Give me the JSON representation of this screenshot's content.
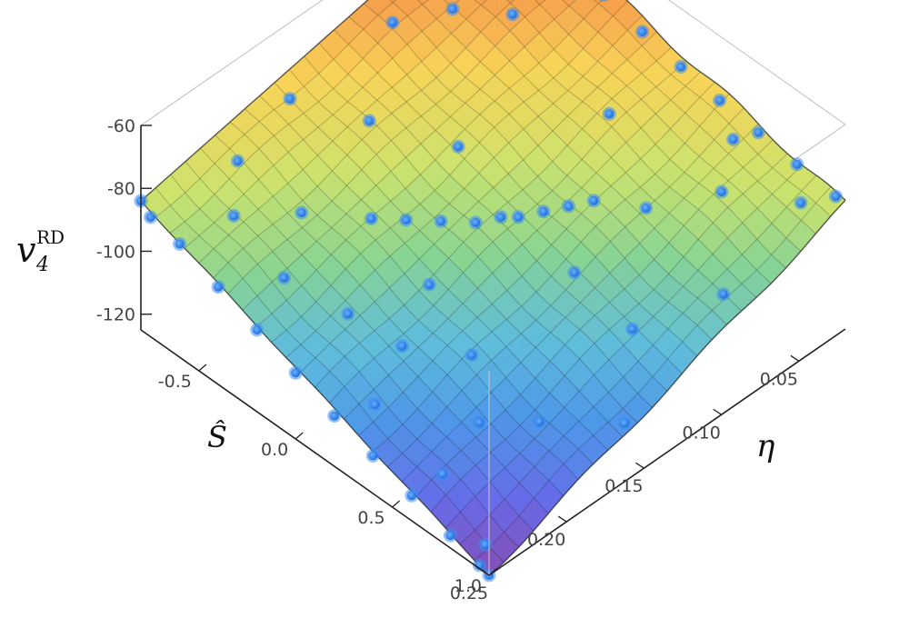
{
  "chart_data": {
    "type": "surface",
    "title": "",
    "axes": {
      "x": {
        "label": "Ŝ",
        "ticks": [
          "-0.5",
          "0.0",
          "0.5",
          "1.0"
        ],
        "range": [
          -0.8,
          1.0
        ]
      },
      "y": {
        "label": "η",
        "ticks": [
          "0.05",
          "0.10",
          "0.15",
          "0.20",
          "0.25"
        ],
        "range": [
          0.02,
          0.25
        ]
      },
      "z": {
        "label_main": "v",
        "label_sub": "4",
        "label_sup": "RD",
        "ticks": [
          "-60",
          "-80",
          "-100",
          "-120"
        ],
        "range": [
          -125,
          -60
        ]
      }
    },
    "surface": {
      "corners": {
        "S_min_eta_min": -62,
        "S_min_eta_max": -84,
        "S_max_eta_min": -85,
        "S_max_eta_max": -125
      },
      "colormap": [
        "#7a3fb0",
        "#5a5fe6",
        "#3f8fe6",
        "#52b7d8",
        "#7ed08a",
        "#c8e060",
        "#f6d04a",
        "#f58a3a",
        "#ee3030"
      ]
    },
    "points": [
      {
        "S": -0.8,
        "eta": 0.02,
        "v": -61.0
      },
      {
        "S": -0.7,
        "eta": 0.02,
        "v": -64.0
      },
      {
        "S": -0.55,
        "eta": 0.02,
        "v": -67.5
      },
      {
        "S": -0.4,
        "eta": 0.02,
        "v": -70.0
      },
      {
        "S": -0.25,
        "eta": 0.02,
        "v": -73.0
      },
      {
        "S": -0.05,
        "eta": 0.02,
        "v": -76.0
      },
      {
        "S": 0.15,
        "eta": 0.02,
        "v": -78.5
      },
      {
        "S": 0.35,
        "eta": 0.02,
        "v": -80.5
      },
      {
        "S": 0.55,
        "eta": 0.02,
        "v": -82.0
      },
      {
        "S": 0.75,
        "eta": 0.02,
        "v": -83.5
      },
      {
        "S": 0.95,
        "eta": 0.02,
        "v": -85.0
      },
      {
        "S": 0.85,
        "eta": 0.03,
        "v": -88.0
      },
      {
        "S": 0.6,
        "eta": 0.05,
        "v": -88.5
      },
      {
        "S": 0.45,
        "eta": 0.08,
        "v": -90.0
      },
      {
        "S": 0.3,
        "eta": 0.095,
        "v": -89.0
      },
      {
        "S": 0.25,
        "eta": 0.105,
        "v": -89.5
      },
      {
        "S": 0.2,
        "eta": 0.115,
        "v": -90.0
      },
      {
        "S": 0.15,
        "eta": 0.125,
        "v": -90.5
      },
      {
        "S": 0.1,
        "eta": 0.13,
        "v": -91.0
      },
      {
        "S": 0.05,
        "eta": 0.14,
        "v": -91.5
      },
      {
        "S": -0.05,
        "eta": 0.15,
        "v": -92.0
      },
      {
        "S": -0.15,
        "eta": 0.16,
        "v": -92.5
      },
      {
        "S": -0.25,
        "eta": 0.17,
        "v": -93.0
      },
      {
        "S": -0.45,
        "eta": 0.19,
        "v": -93.0
      },
      {
        "S": -0.6,
        "eta": 0.215,
        "v": -92.0
      },
      {
        "S": -0.7,
        "eta": 0.1,
        "v": -74.0
      },
      {
        "S": -0.55,
        "eta": 0.08,
        "v": -70.0
      },
      {
        "S": -0.4,
        "eta": 0.06,
        "v": -72.0
      },
      {
        "S": -0.75,
        "eta": 0.16,
        "v": -80.0
      },
      {
        "S": -0.7,
        "eta": 0.2,
        "v": -84.0
      },
      {
        "S": -0.8,
        "eta": 0.25,
        "v": -84.0
      },
      {
        "S": -0.75,
        "eta": 0.25,
        "v": -87.0
      },
      {
        "S": -0.6,
        "eta": 0.25,
        "v": -89.0
      },
      {
        "S": -0.4,
        "eta": 0.25,
        "v": -94.0
      },
      {
        "S": -0.2,
        "eta": 0.25,
        "v": -99.0
      },
      {
        "S": 0.0,
        "eta": 0.25,
        "v": -104.0
      },
      {
        "S": 0.2,
        "eta": 0.25,
        "v": -109.0
      },
      {
        "S": 0.4,
        "eta": 0.25,
        "v": -113.0
      },
      {
        "S": 0.6,
        "eta": 0.25,
        "v": -117.0
      },
      {
        "S": 0.8,
        "eta": 0.25,
        "v": -121.0
      },
      {
        "S": 0.95,
        "eta": 0.25,
        "v": -124.0
      },
      {
        "S": 1.0,
        "eta": 0.25,
        "v": -125.0
      },
      {
        "S": 0.9,
        "eta": 0.24,
        "v": -123.0
      },
      {
        "S": 0.7,
        "eta": 0.18,
        "v": -113.0
      },
      {
        "S": 0.55,
        "eta": 0.2,
        "v": -113.0
      },
      {
        "S": 0.35,
        "eta": 0.18,
        "v": -107.0
      },
      {
        "S": 0.15,
        "eta": 0.2,
        "v": -106.0
      },
      {
        "S": 0.05,
        "eta": 0.17,
        "v": -101.0
      },
      {
        "S": 0.4,
        "eta": 0.12,
        "v": -99.0
      },
      {
        "S": 0.7,
        "eta": 0.12,
        "v": -104.0
      },
      {
        "S": 0.85,
        "eta": 0.08,
        "v": -100.0
      },
      {
        "S": -0.3,
        "eta": 0.22,
        "v": -97.0
      },
      {
        "S": -0.05,
        "eta": 0.21,
        "v": -101.0
      },
      {
        "S": 0.25,
        "eta": 0.23,
        "v": -110.0
      },
      {
        "S": 0.6,
        "eta": 0.23,
        "v": -117.0
      },
      {
        "S": -0.2,
        "eta": 0.12,
        "v": -85.0
      },
      {
        "S": 0.1,
        "eta": 0.06,
        "v": -82.0
      },
      {
        "S": -0.5,
        "eta": 0.14,
        "v": -83.0
      },
      {
        "S": 0.9,
        "eta": 0.15,
        "v": -115.0
      },
      {
        "S": 0.5,
        "eta": 0.03,
        "v": -83.0
      }
    ]
  }
}
